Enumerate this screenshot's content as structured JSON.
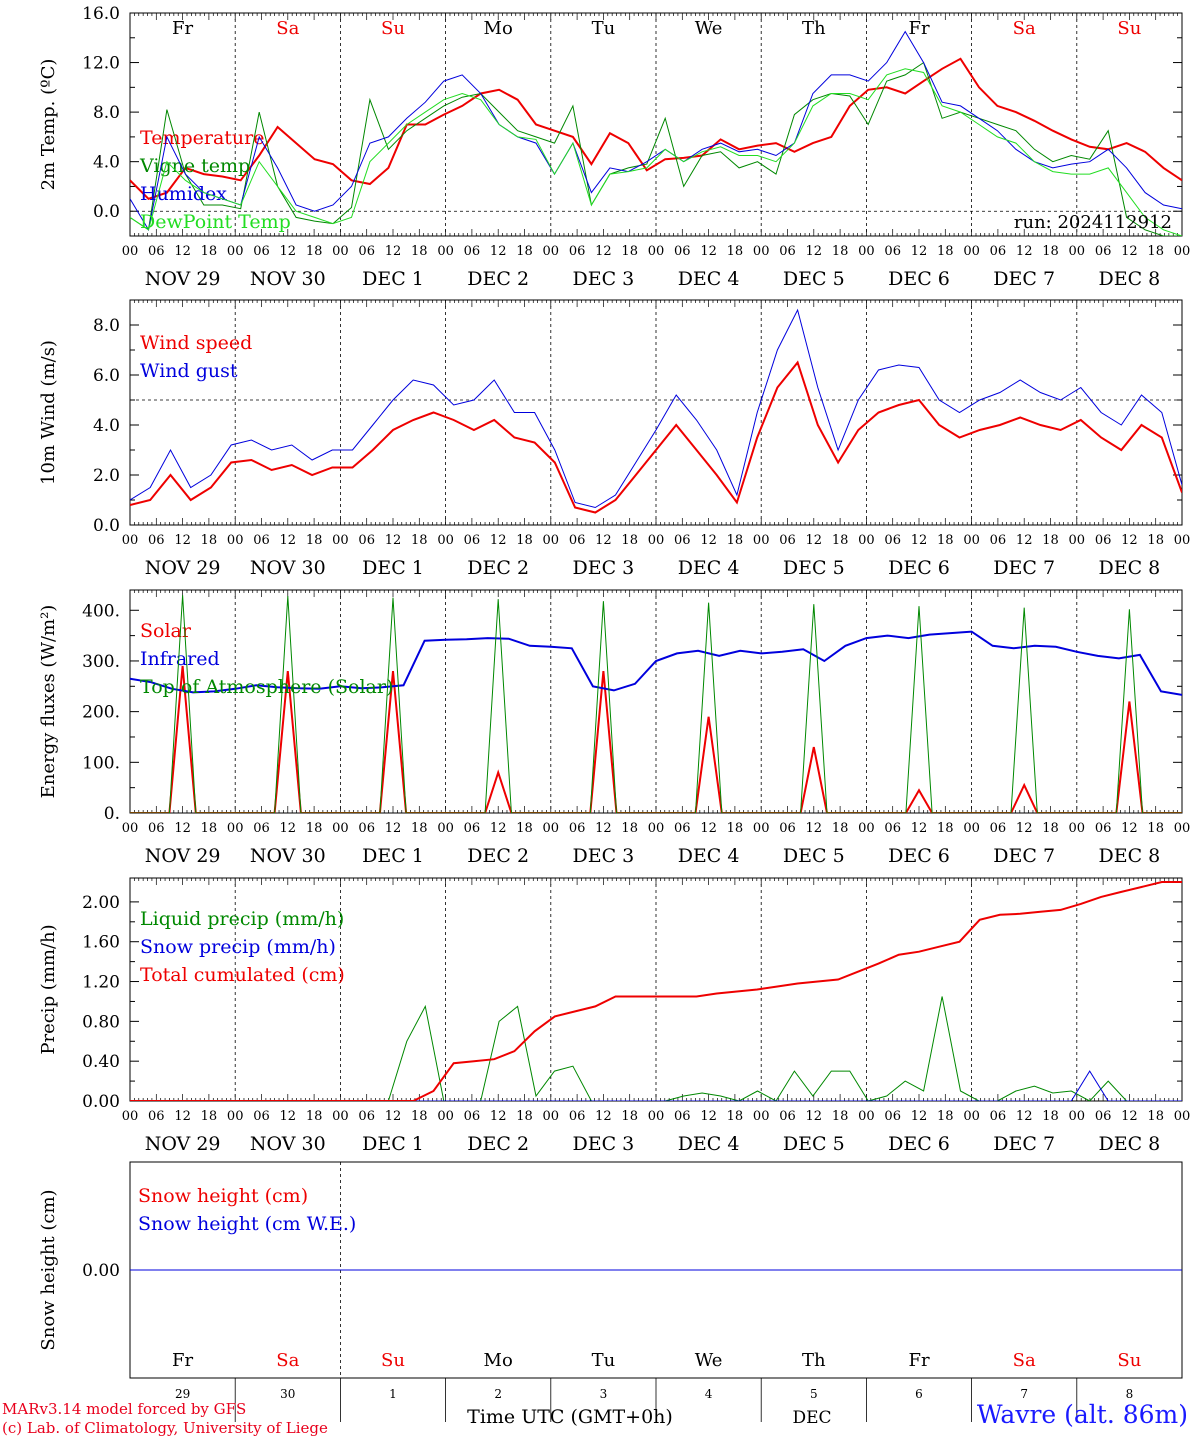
{
  "footer": {
    "model_line": "MARv3.14 model forced by GFS",
    "copyright_line": "(c) Lab. of Climatology, University of Liege",
    "xlabel": "Time UTC (GMT+0h)",
    "month": "DEC",
    "station": "Wavre (alt. 86m)"
  },
  "colors": {
    "red": "#ee0000",
    "green": "#008800",
    "blue": "#0000dd",
    "lightgreen": "#22dd22",
    "sunday_sat": "#ee0000"
  },
  "axis": {
    "hour_labels": [
      "00",
      "06",
      "12",
      "18"
    ],
    "final_hour": "00",
    "date_labels": [
      "NOV 29",
      "NOV 30",
      "DEC  1",
      "DEC  2",
      "DEC  3",
      "DEC  4",
      "DEC  5",
      "DEC  6",
      "DEC  7",
      "DEC  8"
    ],
    "weekdays": [
      "Fr",
      "Sa",
      "Su",
      "Mo",
      "Tu",
      "We",
      "Th",
      "Fr",
      "Sa",
      "Su"
    ],
    "weekend": [
      false,
      true,
      true,
      false,
      false,
      false,
      false,
      false,
      true,
      true
    ],
    "day_numbers": [
      "29",
      "30",
      "1",
      "2",
      "3",
      "4",
      "5",
      "6",
      "7",
      "8"
    ]
  },
  "chart_data": [
    {
      "type": "line",
      "id": "temp",
      "ylabel": "2m Temp. (ºC)",
      "ylim": [
        -2,
        16
      ],
      "yticks": [
        "0.0",
        "4.0",
        "8.0",
        "12.0",
        "16.0"
      ],
      "ytick_values": [
        0,
        4,
        8,
        12,
        16
      ],
      "ref_line": 0,
      "run_label": "run: 2024112912",
      "x_hours_step": 6,
      "series": [
        {
          "name": "Temperature",
          "color": "#ee0000",
          "width": 2,
          "values": [
            2.5,
            1.0,
            1.5,
            3.5,
            3.0,
            2.8,
            2.5,
            4.5,
            6.8,
            5.5,
            4.2,
            3.8,
            2.5,
            2.2,
            3.5,
            7.0,
            7.0,
            7.8,
            8.5,
            9.5,
            9.8,
            9.0,
            7.0,
            6.5,
            6.0,
            3.8,
            6.3,
            5.5,
            3.3,
            4.2,
            4.3,
            4.5,
            5.8,
            5.0,
            5.3,
            5.5,
            4.8,
            5.5,
            6.0,
            8.5,
            9.8,
            10.0,
            9.5,
            10.5,
            11.5,
            12.3,
            10.0,
            8.5,
            8.0,
            7.3,
            6.5,
            5.8,
            5.2,
            5.0,
            5.5,
            4.8,
            3.5,
            2.5
          ]
        },
        {
          "name": "Vigne temp",
          "color": "#008800",
          "width": 1,
          "values": [
            -0.5,
            -1.5,
            8.2,
            3.0,
            0.5,
            0.5,
            0.2,
            8.0,
            2.0,
            -0.5,
            -0.8,
            -1.0,
            0.3,
            9.0,
            5.0,
            6.5,
            7.5,
            8.5,
            9.2,
            9.5,
            8.0,
            6.5,
            6.0,
            5.5,
            8.5,
            0.5,
            3.0,
            3.5,
            3.8,
            7.5,
            2.0,
            4.5,
            4.8,
            3.5,
            4.0,
            3.0,
            7.8,
            9.0,
            9.5,
            9.3,
            7.0,
            10.5,
            11.0,
            12.0,
            7.5,
            8.0,
            7.5,
            7.0,
            6.5,
            5.0,
            4.0,
            4.5,
            4.2,
            6.5,
            -0.5,
            -1.5,
            -2.0,
            -2.0
          ]
        },
        {
          "name": "Humidex",
          "color": "#0000dd",
          "width": 1,
          "values": [
            1.0,
            -1.5,
            6.0,
            3.0,
            1.5,
            1.0,
            0.5,
            6.0,
            3.5,
            0.5,
            0.0,
            0.5,
            2.0,
            5.5,
            6.0,
            7.5,
            8.8,
            10.5,
            11.0,
            9.5,
            7.0,
            6.0,
            5.5,
            3.0,
            5.5,
            1.5,
            3.5,
            3.2,
            4.0,
            5.0,
            4.0,
            5.0,
            5.5,
            4.8,
            5.0,
            4.5,
            5.5,
            9.5,
            11.0,
            11.0,
            10.5,
            12.0,
            14.5,
            12.0,
            8.8,
            8.5,
            7.5,
            6.5,
            5.0,
            4.0,
            3.5,
            3.8,
            4.0,
            5.0,
            3.5,
            1.5,
            0.5,
            0.2
          ]
        },
        {
          "name": "DewPoint Temp",
          "color": "#22dd22",
          "width": 1,
          "values": [
            -0.5,
            -1.5,
            4.0,
            2.5,
            1.5,
            1.0,
            0.5,
            4.0,
            2.0,
            0.0,
            -0.5,
            -1.0,
            -0.5,
            4.0,
            5.5,
            7.0,
            8.0,
            9.0,
            9.5,
            9.0,
            7.0,
            6.0,
            5.8,
            3.0,
            5.5,
            0.5,
            3.0,
            3.2,
            3.5,
            5.0,
            4.0,
            4.8,
            5.2,
            4.5,
            4.5,
            4.0,
            5.5,
            8.5,
            9.5,
            9.5,
            9.0,
            11.0,
            11.5,
            11.2,
            8.5,
            8.0,
            7.0,
            6.0,
            5.5,
            4.0,
            3.2,
            3.0,
            3.0,
            3.5,
            1.5,
            -0.5,
            -1.5,
            -2.0
          ]
        }
      ]
    },
    {
      "type": "line",
      "id": "wind",
      "ylabel": "10m Wind (m/s)",
      "ylim": [
        0,
        9
      ],
      "yticks": [
        "0.0",
        "2.0",
        "4.0",
        "6.0",
        "8.0"
      ],
      "ytick_values": [
        0,
        2,
        4,
        6,
        8
      ],
      "ref_line": 5,
      "x_hours_step": 6,
      "series": [
        {
          "name": "Wind speed",
          "color": "#ee0000",
          "width": 2,
          "values": [
            0.8,
            1.0,
            2.0,
            1.0,
            1.5,
            2.5,
            2.6,
            2.2,
            2.4,
            2.0,
            2.3,
            2.3,
            3.0,
            3.8,
            4.2,
            4.5,
            4.2,
            3.8,
            4.2,
            3.5,
            3.3,
            2.5,
            0.7,
            0.5,
            1.0,
            2.0,
            3.0,
            4.0,
            3.0,
            2.0,
            0.9,
            3.5,
            5.5,
            6.5,
            4.0,
            2.5,
            3.8,
            4.5,
            4.8,
            5.0,
            4.0,
            3.5,
            3.8,
            4.0,
            4.3,
            4.0,
            3.8,
            4.2,
            3.5,
            3.0,
            4.0,
            3.5,
            1.3
          ]
        },
        {
          "name": "Wind gust",
          "color": "#0000dd",
          "width": 1,
          "values": [
            1.0,
            1.5,
            3.0,
            1.5,
            2.0,
            3.2,
            3.4,
            3.0,
            3.2,
            2.6,
            3.0,
            3.0,
            4.0,
            5.0,
            5.8,
            5.6,
            4.8,
            5.0,
            5.8,
            4.5,
            4.5,
            3.0,
            0.9,
            0.7,
            1.2,
            2.5,
            3.8,
            5.2,
            4.2,
            3.0,
            1.2,
            4.5,
            7.0,
            8.6,
            5.5,
            3.0,
            5.0,
            6.2,
            6.4,
            6.3,
            5.0,
            4.5,
            5.0,
            5.3,
            5.8,
            5.3,
            5.0,
            5.5,
            4.5,
            4.0,
            5.2,
            4.5,
            1.6
          ]
        }
      ]
    },
    {
      "type": "line",
      "id": "flux",
      "ylabel": "Energy fluxes (W/m²)",
      "ylim": [
        0,
        440
      ],
      "yticks": [
        "0.",
        "100.",
        "200.",
        "300.",
        "400."
      ],
      "ytick_values": [
        0,
        100,
        200,
        300,
        400
      ],
      "x_hours_step": 6,
      "series": [
        {
          "name": "Solar",
          "color": "#ee0000",
          "width": 2,
          "day_values": [
            [
              0,
              0,
              290,
              0
            ],
            [
              0,
              0,
              280,
              0
            ],
            [
              0,
              0,
              280,
              0
            ],
            [
              0,
              0,
              80,
              0
            ],
            [
              0,
              0,
              280,
              0
            ],
            [
              0,
              0,
              190,
              0
            ],
            [
              0,
              0,
              130,
              0
            ],
            [
              0,
              0,
              45,
              0
            ],
            [
              0,
              0,
              55,
              0
            ],
            [
              0,
              0,
              220,
              0
            ]
          ]
        },
        {
          "name": "Infrared",
          "color": "#0000dd",
          "width": 2,
          "values": [
            265,
            258,
            245,
            238,
            240,
            245,
            252,
            248,
            246,
            245,
            250,
            246,
            248,
            252,
            340,
            342,
            343,
            345,
            344,
            330,
            328,
            325,
            250,
            242,
            255,
            300,
            315,
            320,
            310,
            320,
            315,
            318,
            323,
            300,
            330,
            345,
            350,
            345,
            352,
            355,
            358,
            330,
            325,
            330,
            328,
            318,
            310,
            305,
            312,
            240,
            233
          ]
        },
        {
          "name": "Top of Atmosphere (Solar)",
          "color": "#008800",
          "width": 1,
          "day_values": [
            [
              0,
              0,
              430,
              0
            ],
            [
              0,
              0,
              428,
              0
            ],
            [
              0,
              0,
              425,
              0
            ],
            [
              0,
              0,
              422,
              0
            ],
            [
              0,
              0,
              418,
              0
            ],
            [
              0,
              0,
              415,
              0
            ],
            [
              0,
              0,
              412,
              0
            ],
            [
              0,
              0,
              408,
              0
            ],
            [
              0,
              0,
              405,
              0
            ],
            [
              0,
              0,
              402,
              0
            ]
          ]
        }
      ]
    },
    {
      "type": "line",
      "id": "precip",
      "ylabel": "Precip (mm/h)",
      "ylim": [
        0,
        2.24
      ],
      "yticks": [
        "0.00",
        "0.40",
        "0.80",
        "1.20",
        "1.60",
        "2.00"
      ],
      "ytick_values": [
        0,
        0.4,
        0.8,
        1.2,
        1.6,
        2.0
      ],
      "x_hours_step": 6,
      "series": [
        {
          "name": "Liquid precip (mm/h)",
          "color": "#008800",
          "width": 1,
          "values": [
            0,
            0,
            0,
            0,
            0,
            0,
            0,
            0,
            0,
            0,
            0,
            0,
            0,
            0,
            0,
            0.6,
            0.95,
            0,
            0,
            0,
            0.8,
            0.95,
            0.05,
            0.3,
            0.35,
            0,
            0,
            0,
            0,
            0,
            0.05,
            0.08,
            0.05,
            0,
            0.1,
            0,
            0.3,
            0.05,
            0.3,
            0.3,
            0,
            0.05,
            0.2,
            0.1,
            1.05,
            0.1,
            0,
            0,
            0.1,
            0.15,
            0.08,
            0.1,
            0,
            0.2,
            0,
            0,
            0,
            0
          ]
        },
        {
          "name": "Snow precip (mm/h)",
          "color": "#0000dd",
          "width": 1,
          "values": [
            0,
            0,
            0,
            0,
            0,
            0,
            0,
            0,
            0,
            0,
            0,
            0,
            0,
            0,
            0,
            0,
            0,
            0,
            0,
            0,
            0,
            0,
            0,
            0,
            0,
            0,
            0,
            0,
            0,
            0,
            0,
            0,
            0,
            0,
            0,
            0,
            0,
            0,
            0,
            0,
            0,
            0,
            0,
            0,
            0,
            0,
            0,
            0,
            0,
            0,
            0,
            0,
            0.3,
            0,
            0,
            0,
            0,
            0
          ]
        },
        {
          "name": "Total cumulated (cm)",
          "color": "#ee0000",
          "width": 2,
          "values": [
            0,
            0,
            0,
            0,
            0,
            0,
            0,
            0,
            0,
            0,
            0,
            0,
            0,
            0,
            0,
            0.1,
            0.38,
            0.4,
            0.42,
            0.5,
            0.7,
            0.85,
            0.9,
            0.95,
            1.05,
            1.05,
            1.05,
            1.05,
            1.05,
            1.08,
            1.1,
            1.12,
            1.15,
            1.18,
            1.2,
            1.22,
            1.3,
            1.38,
            1.47,
            1.5,
            1.55,
            1.6,
            1.82,
            1.87,
            1.88,
            1.9,
            1.92,
            1.98,
            2.05,
            2.1,
            2.15,
            2.2,
            2.2
          ]
        }
      ]
    },
    {
      "type": "line",
      "id": "snow",
      "ylabel": "Snow height (cm)",
      "ylim": [
        -1,
        1
      ],
      "yticks": [
        "0.00"
      ],
      "ytick_values": [
        0
      ],
      "x_hours_step": 6,
      "series": [
        {
          "name": "Snow height (cm)",
          "color": "#ee0000",
          "width": 1,
          "values": [
            0,
            0
          ]
        },
        {
          "name": "Snow height (cm W.E.)",
          "color": "#0000dd",
          "width": 1,
          "values": [
            0,
            0
          ]
        }
      ]
    }
  ]
}
